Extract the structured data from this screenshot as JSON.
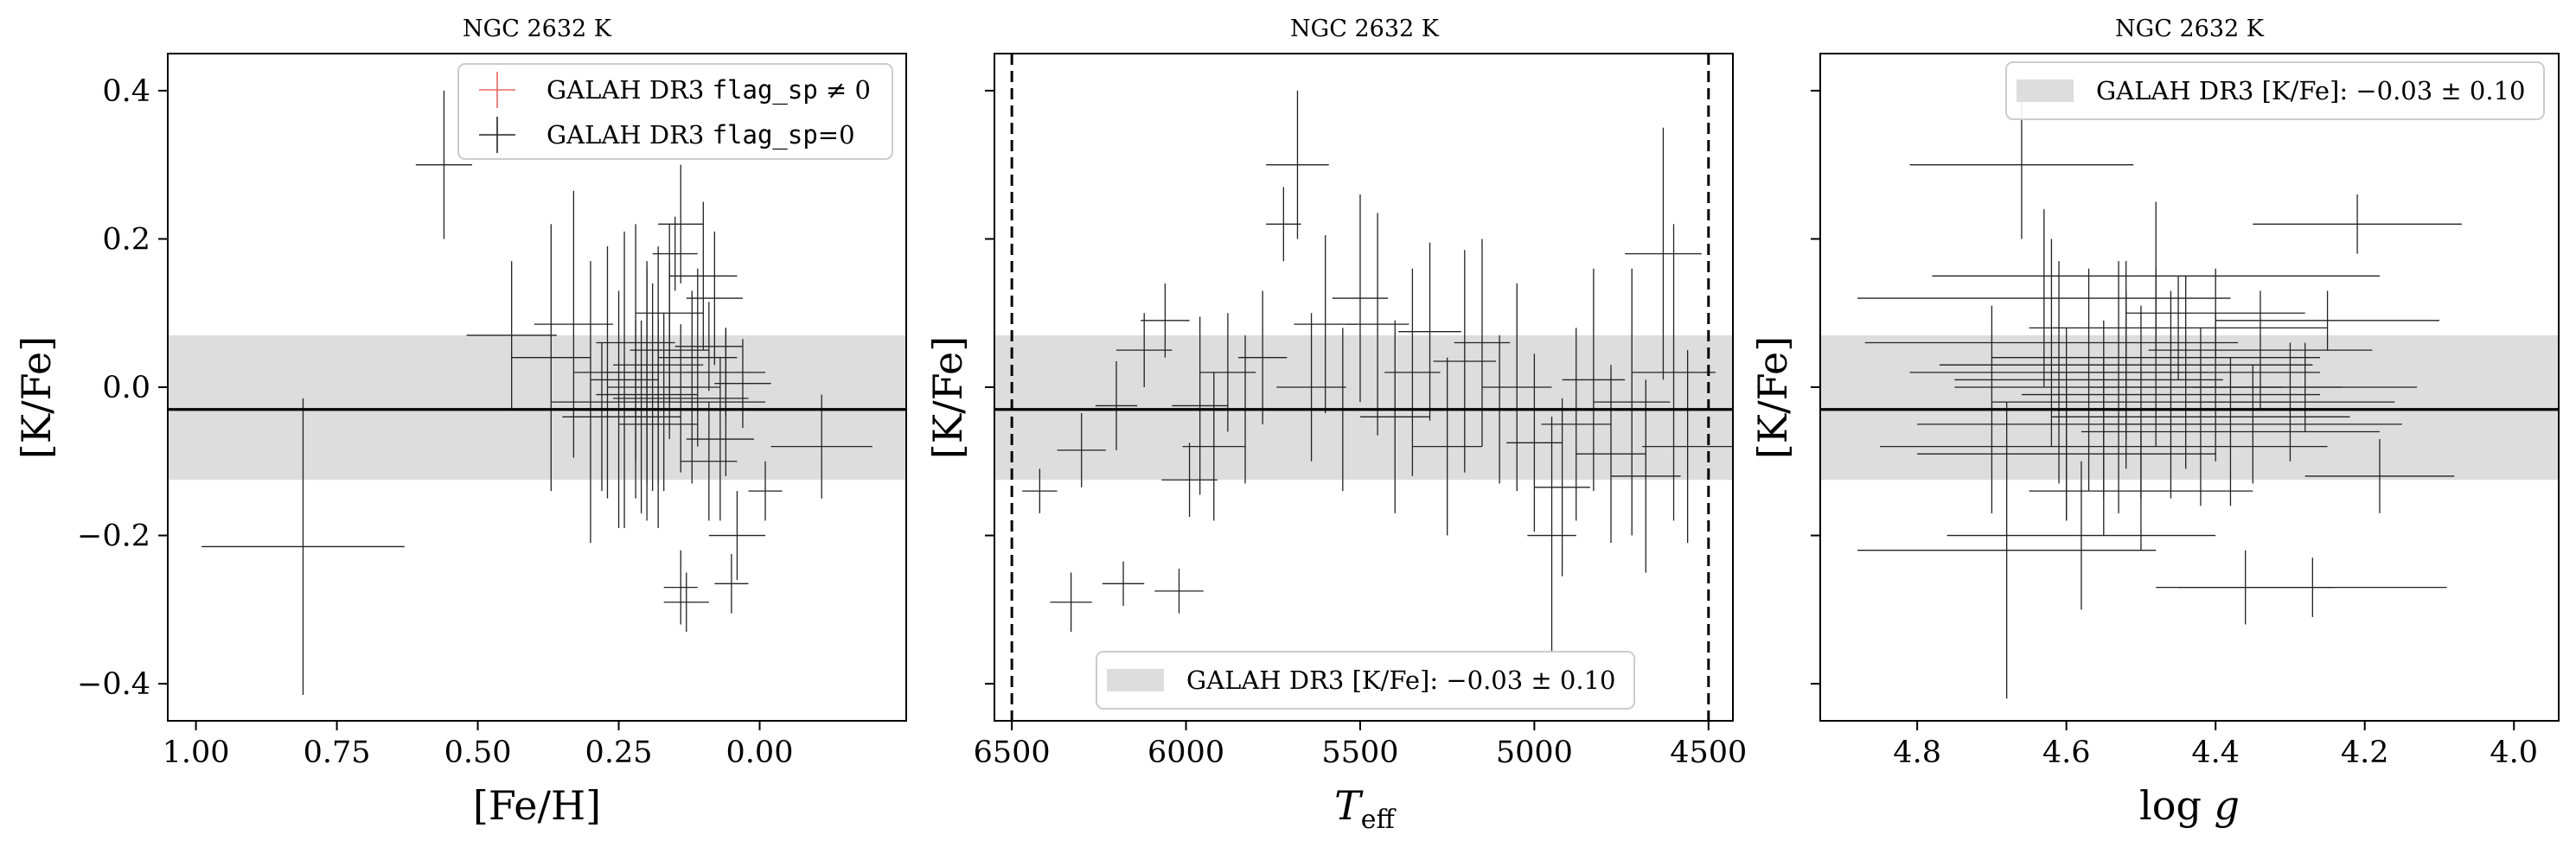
{
  "figure": {
    "colors": {
      "band": "#dddddd",
      "errorbar": "#222222",
      "flagged": "#e8685f",
      "mean_line": "#000000"
    }
  },
  "chart_data": [
    {
      "type": "scatter",
      "title": "NGC 2632 K",
      "xlabel": "[Fe/H]",
      "ylabel": "[K/Fe]",
      "xlim": [
        1.05,
        -0.26
      ],
      "ylim": [
        -0.45,
        0.45
      ],
      "xticks": [
        1.0,
        0.75,
        0.5,
        0.25,
        0.0
      ],
      "xtick_labels": [
        "1.00",
        "0.75",
        "0.50",
        "0.25",
        "0.00"
      ],
      "yticks": [
        0.4,
        0.2,
        0.0,
        -0.2,
        -0.4
      ],
      "ytick_labels": [
        "0.4",
        "0.2",
        "0.0",
        "−0.2",
        "−0.4"
      ],
      "band": {
        "center": -0.03,
        "lower": -0.125,
        "upper": 0.07
      },
      "legend": {
        "position": "top-right",
        "entries": [
          {
            "prefix": "GALAH DR3 ",
            "code": "flag_sp",
            "suffix": " ≠ 0",
            "marker": "cross",
            "color": "#e8685f"
          },
          {
            "prefix": "GALAH DR3 ",
            "code": "flag_sp",
            "suffix": "=0",
            "marker": "cross",
            "color": "#222222"
          }
        ]
      },
      "series": [
        {
          "name": "GALAH DR3 flag_sp=0",
          "x": [
            0.81,
            0.56,
            0.44,
            0.37,
            0.33,
            0.3,
            0.27,
            0.25,
            0.24,
            0.22,
            0.21,
            0.2,
            0.2,
            0.19,
            0.18,
            0.18,
            0.17,
            0.16,
            0.15,
            0.14,
            0.14,
            0.13,
            0.12,
            0.11,
            0.1,
            0.09,
            0.08,
            0.07,
            0.06,
            0.05,
            0.04,
            -0.01,
            -0.11,
            0.16,
            0.14,
            0.06,
            0.22,
            0.28,
            0.09,
            0.03
          ],
          "y": [
            -0.215,
            0.3,
            0.07,
            0.04,
            0.085,
            -0.02,
            0.02,
            -0.03,
            0.01,
            0.06,
            -0.04,
            0.02,
            -0.01,
            0.0,
            0.03,
            -0.05,
            -0.02,
            0.05,
            0.18,
            0.22,
            -0.27,
            -0.29,
            0.0,
            0.04,
            0.15,
            -0.1,
            0.12,
            -0.07,
            0.02,
            -0.265,
            -0.2,
            -0.14,
            -0.08,
            0.1,
            -0.015,
            -0.02,
            -0.03,
            -0.04,
            0.055,
            0.005
          ],
          "xerr": [
            0.18,
            0.05,
            0.08,
            0.07,
            0.07,
            0.07,
            0.06,
            0.06,
            0.06,
            0.07,
            0.07,
            0.08,
            0.09,
            0.08,
            0.08,
            0.07,
            0.06,
            0.07,
            0.04,
            0.04,
            0.03,
            0.04,
            0.05,
            0.07,
            0.06,
            0.05,
            0.05,
            0.06,
            0.07,
            0.03,
            0.05,
            0.03,
            0.09,
            0.06,
            0.12,
            0.07,
            0.09,
            0.07,
            0.06,
            0.05
          ],
          "yerr": [
            0.2,
            0.1,
            0.1,
            0.18,
            0.18,
            0.19,
            0.17,
            0.16,
            0.2,
            0.16,
            0.13,
            0.15,
            0.17,
            0.14,
            0.16,
            0.14,
            0.12,
            0.12,
            0.05,
            0.08,
            0.05,
            0.04,
            0.13,
            0.12,
            0.1,
            0.08,
            0.09,
            0.11,
            0.06,
            0.04,
            0.06,
            0.04,
            0.07,
            0.12,
            0.1,
            0.1,
            0.12,
            0.1,
            0.06,
            0.06
          ]
        }
      ]
    },
    {
      "type": "scatter",
      "title": "NGC 2632 K",
      "xlabel": "T_eff",
      "ylabel": "[K/Fe]",
      "xlim": [
        6550,
        4430
      ],
      "ylim": [
        -0.45,
        0.45
      ],
      "xticks": [
        6500,
        6000,
        5500,
        5000,
        4500
      ],
      "xtick_labels": [
        "6500",
        "6000",
        "5500",
        "5000",
        "4500"
      ],
      "yticks": [
        0.4,
        0.2,
        0.0,
        -0.2,
        -0.4
      ],
      "ytick_labels": [
        "",
        "",
        "",
        "",
        ""
      ],
      "vlines": [
        6500,
        4500
      ],
      "band": {
        "center": -0.03,
        "lower": -0.125,
        "upper": 0.07
      },
      "legend": {
        "position": "bottom-center",
        "entries": [
          {
            "text": "GALAH DR3 [K/Fe]:  −0.03 ± 0.10",
            "marker": "band"
          }
        ]
      },
      "series": [
        {
          "name": "",
          "x": [
            6420,
            6330,
            6300,
            6200,
            6180,
            6120,
            6060,
            6020,
            5990,
            5960,
            5920,
            5880,
            5830,
            5780,
            5720,
            5680,
            5640,
            5600,
            5550,
            5500,
            5450,
            5400,
            5350,
            5300,
            5250,
            5200,
            5150,
            5100,
            5050,
            5000,
            4950,
            4920,
            4880,
            4830,
            4780,
            4720,
            4680,
            4630,
            4600,
            4560
          ],
          "y": [
            -0.14,
            -0.29,
            -0.085,
            -0.025,
            -0.265,
            0.05,
            0.09,
            -0.275,
            -0.125,
            -0.025,
            -0.08,
            0.02,
            -0.03,
            0.04,
            0.22,
            0.3,
            0.0,
            0.085,
            -0.03,
            0.12,
            0.085,
            -0.04,
            0.02,
            0.075,
            -0.08,
            0.035,
            0.06,
            -0.03,
            0.0,
            -0.075,
            -0.2,
            -0.135,
            -0.05,
            0.01,
            -0.09,
            -0.02,
            -0.12,
            0.18,
            0.02,
            -0.08
          ],
          "xerr": [
            50,
            60,
            70,
            60,
            60,
            80,
            70,
            70,
            80,
            80,
            90,
            80,
            90,
            70,
            50,
            90,
            100,
            90,
            80,
            80,
            90,
            100,
            80,
            90,
            100,
            90,
            80,
            90,
            100,
            80,
            70,
            80,
            100,
            90,
            100,
            110,
            100,
            110,
            120,
            130
          ],
          "yerr": [
            0.03,
            0.04,
            0.05,
            0.06,
            0.03,
            0.05,
            0.05,
            0.03,
            0.05,
            0.12,
            0.1,
            0.08,
            0.1,
            0.09,
            0.05,
            0.1,
            0.1,
            0.12,
            0.11,
            0.14,
            0.15,
            0.13,
            0.14,
            0.12,
            0.12,
            0.15,
            0.14,
            0.1,
            0.14,
            0.12,
            0.16,
            0.12,
            0.13,
            0.15,
            0.12,
            0.18,
            0.13,
            0.17,
            0.2,
            0.13
          ]
        }
      ]
    },
    {
      "type": "scatter",
      "title": "NGC 2632 K",
      "xlabel": "log g",
      "ylabel": "[K/Fe]",
      "xlim": [
        4.93,
        3.94
      ],
      "ylim": [
        -0.45,
        0.45
      ],
      "xticks": [
        4.8,
        4.6,
        4.4,
        4.2,
        4.0
      ],
      "xtick_labels": [
        "4.8",
        "4.6",
        "4.4",
        "4.2",
        "4.0"
      ],
      "yticks": [
        0.4,
        0.2,
        0.0,
        -0.2,
        -0.4
      ],
      "ytick_labels": [
        "",
        "",
        "",
        "",
        ""
      ],
      "band": {
        "center": -0.03,
        "lower": -0.125,
        "upper": 0.07
      },
      "legend": {
        "position": "top-right",
        "entries": [
          {
            "text": "GALAH DR3 [K/Fe]:  −0.03 ± 0.10",
            "marker": "band"
          }
        ]
      },
      "series": [
        {
          "name": "",
          "x": [
            4.66,
            4.68,
            4.62,
            4.61,
            4.6,
            4.57,
            4.55,
            4.53,
            4.52,
            4.5,
            4.48,
            4.46,
            4.44,
            4.42,
            4.4,
            4.38,
            4.36,
            4.34,
            4.3,
            4.27,
            4.25,
            4.21,
            4.18,
            4.48,
            4.55,
            4.63,
            4.7,
            4.5,
            4.45,
            4.58,
            4.4,
            4.35,
            4.28,
            4.52,
            4.6
          ],
          "y": [
            0.3,
            -0.22,
            0.06,
            0.02,
            -0.05,
            0.01,
            -0.03,
            0.0,
            0.03,
            -0.02,
            0.04,
            -0.01,
            0.02,
            -0.04,
            0.0,
            -0.06,
            -0.27,
            0.05,
            -0.02,
            -0.27,
            0.09,
            0.22,
            -0.12,
            0.15,
            -0.08,
            0.12,
            -0.03,
            -0.14,
            0.08,
            -0.2,
            0.1,
            -0.05,
            0.0,
            0.03,
            -0.09
          ],
          "xerr": [
            0.15,
            0.2,
            0.25,
            0.2,
            0.2,
            0.18,
            0.2,
            0.22,
            0.25,
            0.2,
            0.22,
            0.2,
            0.18,
            0.2,
            0.17,
            0.2,
            0.12,
            0.15,
            0.14,
            0.18,
            0.15,
            0.14,
            0.1,
            0.3,
            0.3,
            0.25,
            0.15,
            0.15,
            0.2,
            0.18,
            0.12,
            0.2,
            0.15,
            0.25,
            0.2
          ],
          "yerr": [
            0.1,
            0.2,
            0.14,
            0.15,
            0.13,
            0.15,
            0.12,
            0.17,
            0.14,
            0.13,
            0.12,
            0.14,
            0.13,
            0.12,
            0.1,
            0.1,
            0.05,
            0.08,
            0.08,
            0.04,
            0.04,
            0.04,
            0.05,
            0.1,
            0.12,
            0.12,
            0.14,
            0.08,
            0.07,
            0.1,
            0.06,
            0.08,
            0.06,
            0.1,
            0.09
          ]
        }
      ]
    }
  ]
}
